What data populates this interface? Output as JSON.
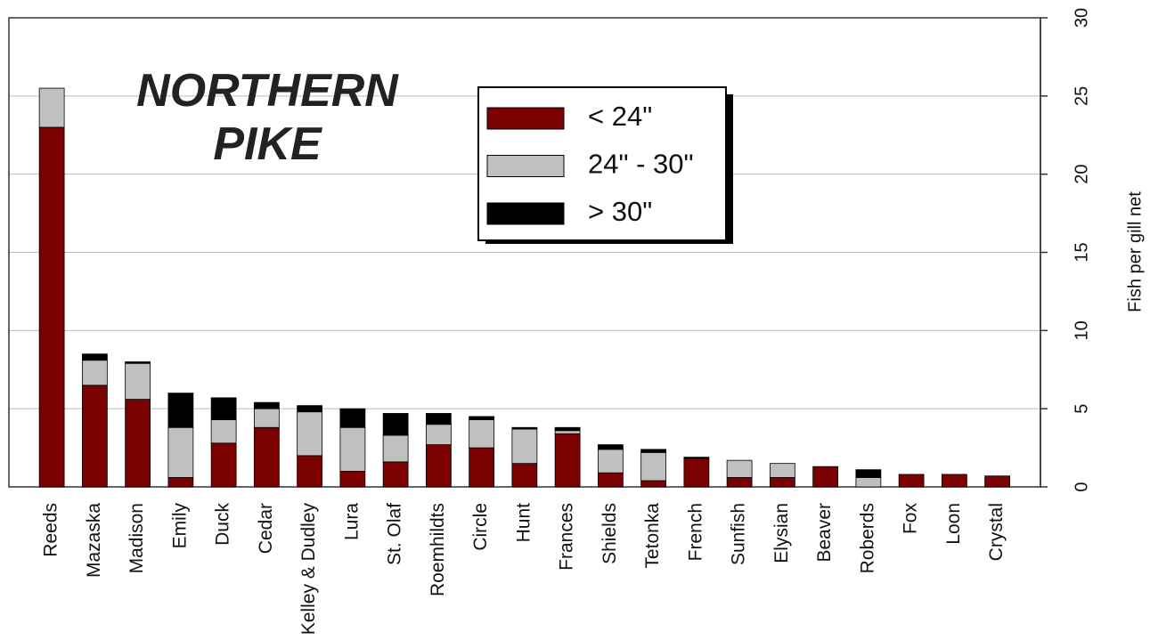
{
  "chart_data": {
    "type": "stacked_bar",
    "title": "NORTHERN PIKE",
    "y_label": "Fish per gill net",
    "categories": [
      "Reeds",
      "Mazaska",
      "Madison",
      "Emily",
      "Duck",
      "Cedar",
      "Kelley & Dudley",
      "Lura",
      "St. Olaf",
      "Roemhildts",
      "Circle",
      "Hunt",
      "Frances",
      "Shields",
      "Tetonka",
      "French",
      "Sunfish",
      "Elysian",
      "Beaver",
      "Roberds",
      "Fox",
      "Loon",
      "Crystal"
    ],
    "series": [
      {
        "name": "< 24\"",
        "color": "#7b0000",
        "values": [
          23,
          6.5,
          5.6,
          0.6,
          2.8,
          3.8,
          2.0,
          1.0,
          1.6,
          2.7,
          2.5,
          1.5,
          3.4,
          0.9,
          0.4,
          1.8,
          0.6,
          0.6,
          1.3,
          0,
          0.8,
          0.8,
          0.7
        ]
      },
      {
        "name": "24\" - 30\"",
        "color": "#c0c0c0",
        "values": [
          2.5,
          1.6,
          2.3,
          3.2,
          1.5,
          1.2,
          2.8,
          2.8,
          1.7,
          1.3,
          1.8,
          2.2,
          0.2,
          1.5,
          1.8,
          0,
          1.1,
          0.9,
          0,
          0.6,
          0,
          0,
          0
        ]
      },
      {
        "name": "> 30\"",
        "color": "#000000",
        "values": [
          0,
          0.4,
          0.1,
          2.2,
          1.4,
          0.4,
          0.4,
          1.2,
          1.4,
          0.7,
          0.2,
          0.1,
          0.2,
          0.3,
          0.2,
          0.1,
          0,
          0,
          0,
          0.5,
          0,
          0,
          0
        ]
      }
    ],
    "ylim": [
      0,
      30
    ],
    "yticks": [
      0,
      5,
      10,
      15,
      20,
      25,
      30
    ],
    "grid": true,
    "legend": "top"
  }
}
